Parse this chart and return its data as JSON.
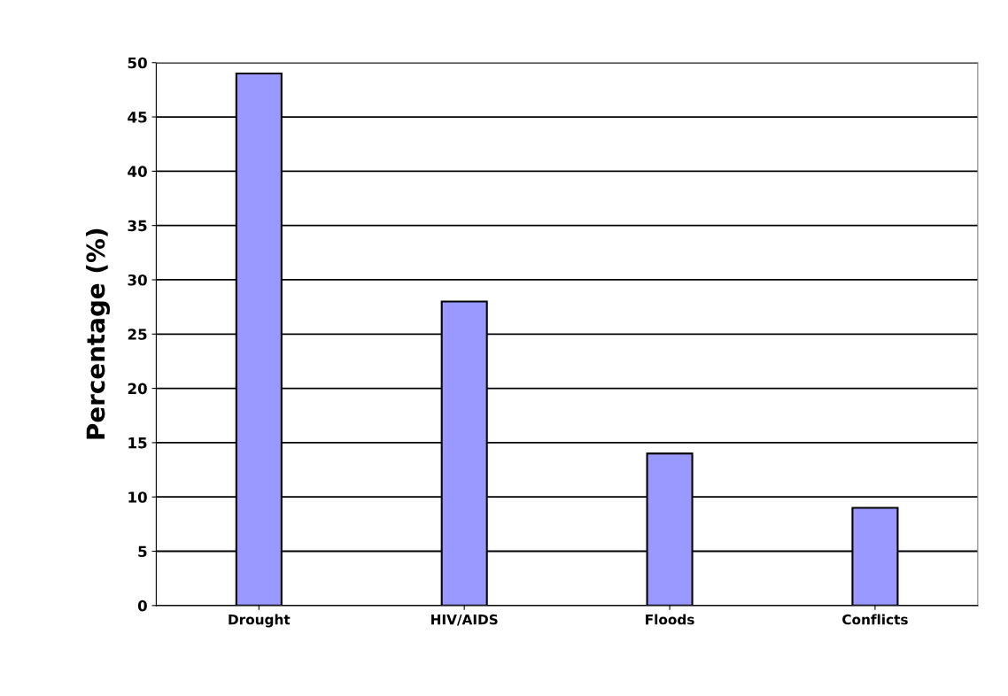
{
  "chart_data": {
    "type": "bar",
    "ylabel": "Percentage (%)",
    "categories": [
      "Drought",
      "HIV/AIDS",
      "Floods",
      "Conflicts"
    ],
    "values": [
      49,
      28,
      14,
      9
    ],
    "color": "#9999ff",
    "ylim": [
      0,
      50
    ],
    "yticks": [
      0,
      5,
      10,
      15,
      20,
      25,
      30,
      35,
      40,
      45,
      50
    ],
    "grid": "y"
  }
}
